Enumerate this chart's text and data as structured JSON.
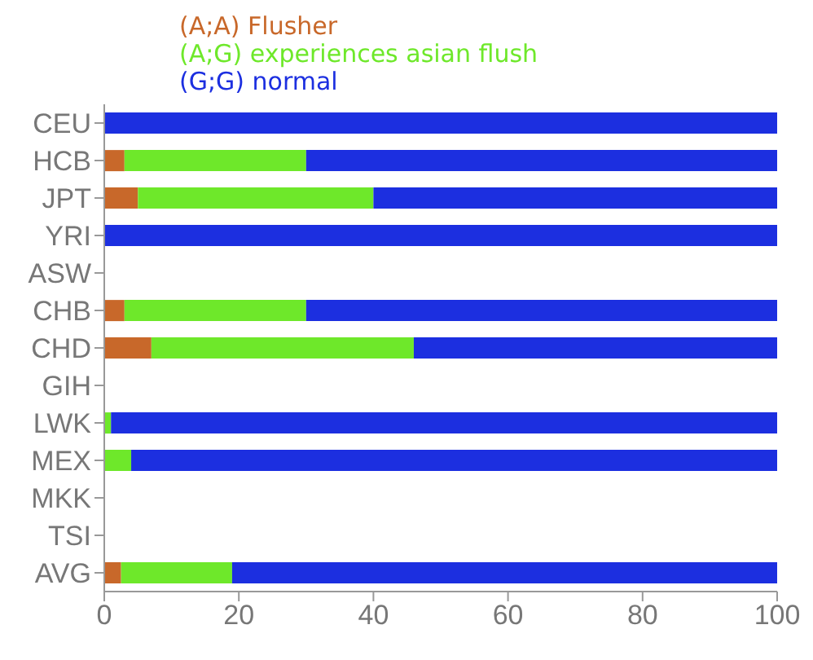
{
  "chart_data": {
    "type": "bar",
    "orientation": "horizontal",
    "stacked": true,
    "categories": [
      "CEU",
      "HCB",
      "JPT",
      "YRI",
      "ASW",
      "CHB",
      "CHD",
      "GIH",
      "LWK",
      "MEX",
      "MKK",
      "TSI",
      "AVG"
    ],
    "series": [
      {
        "name": "(A;A) Flusher",
        "color": "#c8682a",
        "values": [
          0,
          3,
          5,
          0,
          null,
          3,
          7,
          null,
          0,
          0,
          null,
          null,
          2.5
        ]
      },
      {
        "name": "(A;G) experiences asian flush",
        "color": "#6ee82a",
        "values": [
          0,
          27,
          35,
          0,
          null,
          27,
          39,
          null,
          1,
          4,
          null,
          null,
          16.5
        ]
      },
      {
        "name": "(G;G) normal",
        "color": "#1c2fe0",
        "values": [
          100,
          70,
          60,
          100,
          null,
          70,
          54,
          null,
          99,
          96,
          null,
          null,
          81
        ]
      }
    ],
    "xlim": [
      0,
      100
    ],
    "xticks": [
      0,
      20,
      40,
      60,
      80,
      100
    ],
    "grid": false,
    "legend": "top"
  }
}
